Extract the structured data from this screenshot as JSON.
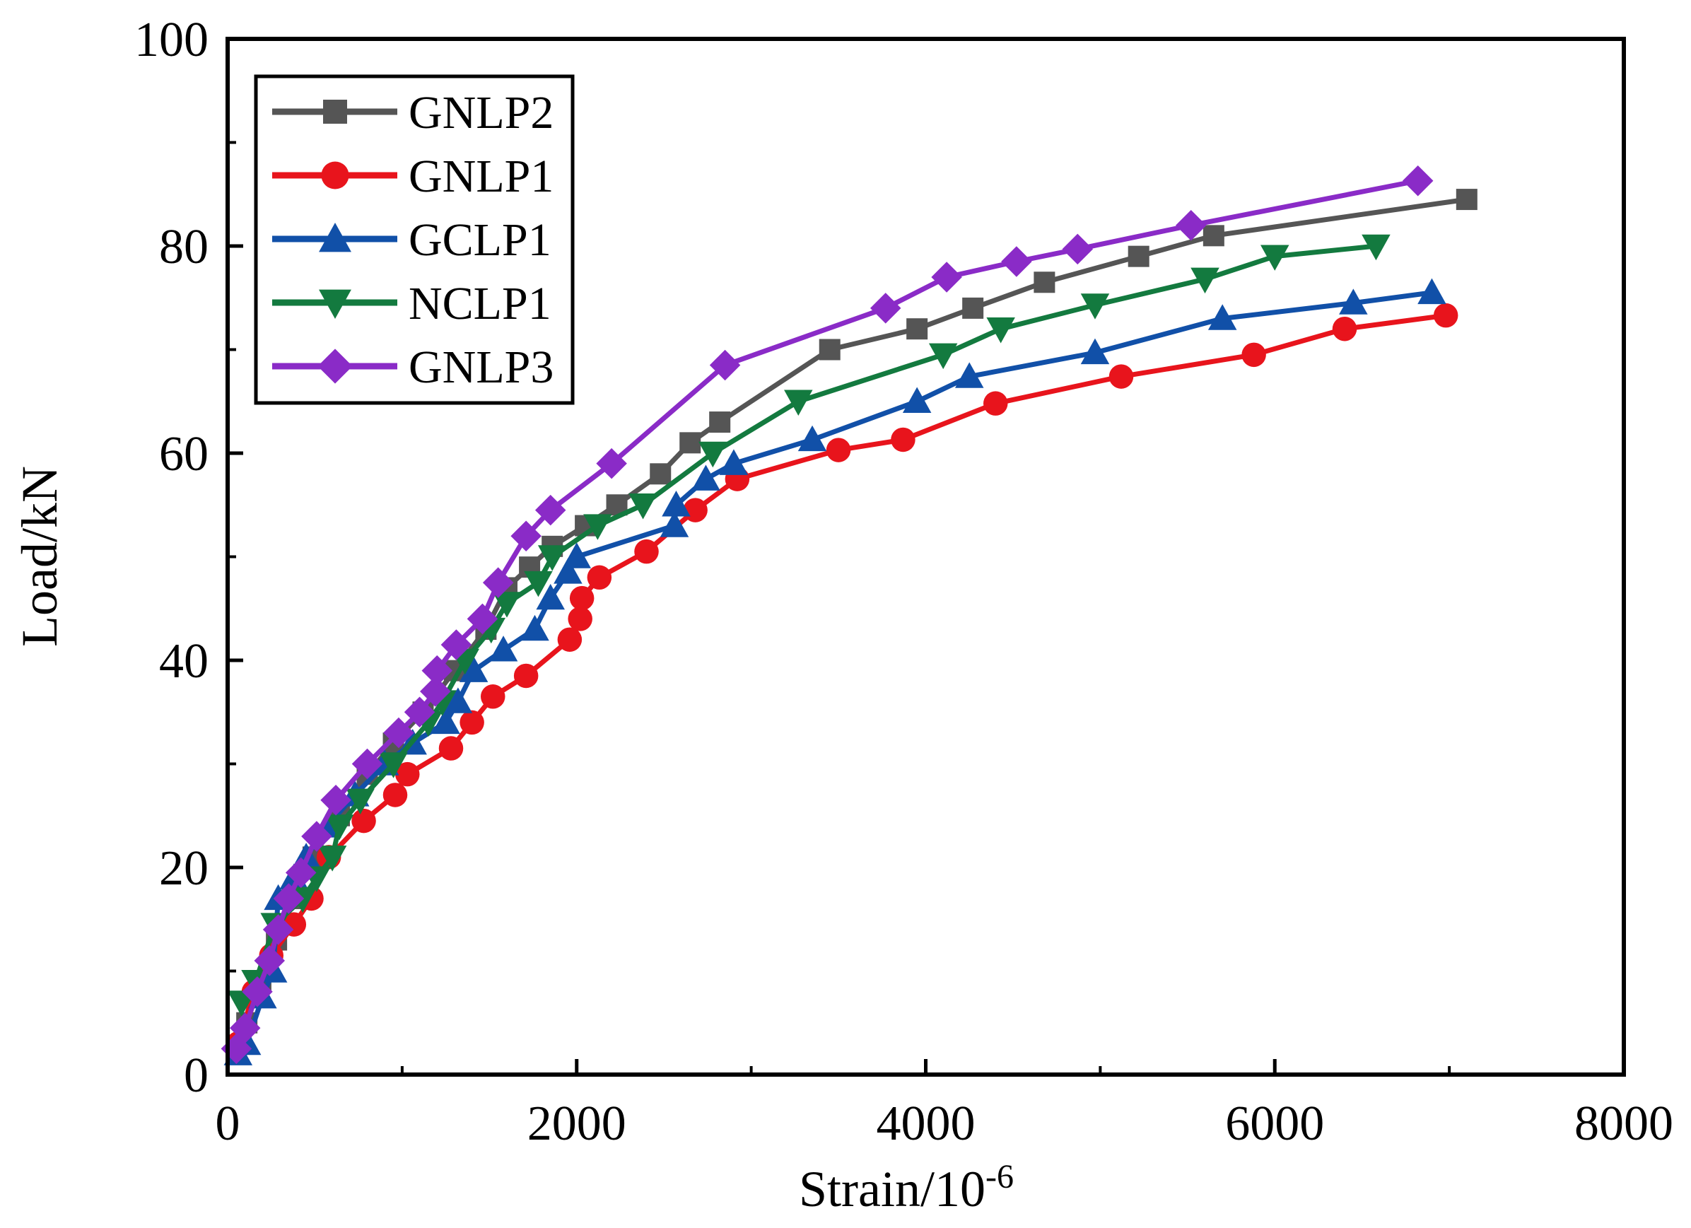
{
  "chart_data": {
    "type": "line",
    "title": "",
    "xlabel": "Strain/10",
    "xlabel_superscript": "-6",
    "ylabel": "Load/kN",
    "xlim": [
      0,
      8000
    ],
    "ylim": [
      0,
      100
    ],
    "x_ticks": [
      "0",
      "2000",
      "4000",
      "6000",
      "8000"
    ],
    "y_ticks": [
      "0",
      "20",
      "40",
      "60",
      "80",
      "100"
    ],
    "grid": false,
    "legend_position": "top-left",
    "series": [
      {
        "name": "GNLP2",
        "color": "#555555",
        "marker": "square",
        "points": [
          [
            50,
            2
          ],
          [
            110,
            5
          ],
          [
            190,
            9
          ],
          [
            280,
            13
          ],
          [
            370,
            17
          ],
          [
            490,
            21
          ],
          [
            640,
            25
          ],
          [
            800,
            29
          ],
          [
            950,
            32
          ],
          [
            1120,
            35
          ],
          [
            1300,
            39
          ],
          [
            1480,
            43
          ],
          [
            1600,
            47
          ],
          [
            1730,
            49
          ],
          [
            1860,
            51
          ],
          [
            2050,
            53
          ],
          [
            2230,
            55
          ],
          [
            2480,
            58
          ],
          [
            2650,
            61
          ],
          [
            2820,
            63
          ],
          [
            3450,
            70
          ],
          [
            3950,
            72
          ],
          [
            4270,
            74
          ],
          [
            4680,
            76.5
          ],
          [
            5220,
            79
          ],
          [
            5650,
            81
          ],
          [
            7100,
            84.5
          ]
        ]
      },
      {
        "name": "GNLP1",
        "color": "#e8141c",
        "marker": "circle",
        "points": [
          [
            60,
            3
          ],
          [
            150,
            8
          ],
          [
            250,
            11.5
          ],
          [
            380,
            14.5
          ],
          [
            480,
            17
          ],
          [
            580,
            21
          ],
          [
            780,
            24.5
          ],
          [
            960,
            27
          ],
          [
            1030,
            29
          ],
          [
            1280,
            31.5
          ],
          [
            1400,
            34
          ],
          [
            1520,
            36.5
          ],
          [
            1710,
            38.5
          ],
          [
            1960,
            42
          ],
          [
            2020,
            44
          ],
          [
            2030,
            46
          ],
          [
            2130,
            48
          ],
          [
            2400,
            50.5
          ],
          [
            2680,
            54.5
          ],
          [
            2920,
            57.5
          ],
          [
            3500,
            60.3
          ],
          [
            3870,
            61.3
          ],
          [
            4400,
            64.8
          ],
          [
            5120,
            67.4
          ],
          [
            5880,
            69.5
          ],
          [
            6400,
            72
          ],
          [
            6980,
            73.3
          ]
        ]
      },
      {
        "name": "GCLP1",
        "color": "#1150a8",
        "marker": "triangle-up",
        "points": [
          [
            60,
            2
          ],
          [
            110,
            3
          ],
          [
            200,
            7.5
          ],
          [
            260,
            10
          ],
          [
            290,
            17
          ],
          [
            380,
            19
          ],
          [
            450,
            21
          ],
          [
            570,
            24
          ],
          [
            730,
            27
          ],
          [
            900,
            30
          ],
          [
            1060,
            32
          ],
          [
            1250,
            34
          ],
          [
            1320,
            36
          ],
          [
            1410,
            39
          ],
          [
            1580,
            41
          ],
          [
            1760,
            43
          ],
          [
            1850,
            46
          ],
          [
            1950,
            48.5
          ],
          [
            2000,
            50
          ],
          [
            2560,
            53
          ],
          [
            2570,
            55
          ],
          [
            2740,
            57.5
          ],
          [
            2900,
            59
          ],
          [
            3350,
            61.3
          ],
          [
            3950,
            65
          ],
          [
            4250,
            67.4
          ],
          [
            4970,
            69.7
          ],
          [
            5700,
            73
          ],
          [
            6450,
            74.5
          ],
          [
            6900,
            75.5
          ]
        ]
      },
      {
        "name": "NCLP1",
        "color": "#137a3f",
        "marker": "triangle-down",
        "points": [
          [
            80,
            7
          ],
          [
            160,
            9
          ],
          [
            270,
            14.5
          ],
          [
            430,
            17
          ],
          [
            510,
            19
          ],
          [
            600,
            21
          ],
          [
            640,
            24
          ],
          [
            760,
            26.5
          ],
          [
            950,
            30
          ],
          [
            1150,
            34
          ],
          [
            1230,
            36
          ],
          [
            1360,
            40
          ],
          [
            1510,
            43
          ],
          [
            1600,
            45.5
          ],
          [
            1780,
            47.5
          ],
          [
            1860,
            50
          ],
          [
            2120,
            53
          ],
          [
            2380,
            55
          ],
          [
            2780,
            60
          ],
          [
            3270,
            65
          ],
          [
            4100,
            69.5
          ],
          [
            4430,
            72
          ],
          [
            4970,
            74.3
          ],
          [
            5600,
            76.8
          ],
          [
            6000,
            79
          ],
          [
            6580,
            80
          ]
        ]
      },
      {
        "name": "GNLP3",
        "color": "#8a2bc7",
        "marker": "diamond",
        "points": [
          [
            50,
            2.5
          ],
          [
            100,
            4.5
          ],
          [
            170,
            8
          ],
          [
            240,
            11
          ],
          [
            290,
            14
          ],
          [
            350,
            17
          ],
          [
            420,
            19.5
          ],
          [
            510,
            23
          ],
          [
            620,
            26.5
          ],
          [
            800,
            30
          ],
          [
            980,
            33
          ],
          [
            1100,
            35
          ],
          [
            1190,
            37
          ],
          [
            1200,
            39
          ],
          [
            1310,
            41.5
          ],
          [
            1460,
            44
          ],
          [
            1550,
            47.5
          ],
          [
            1710,
            52
          ],
          [
            1850,
            54.5
          ],
          [
            2200,
            59
          ],
          [
            2850,
            68.5
          ],
          [
            3770,
            74
          ],
          [
            4120,
            77
          ],
          [
            4520,
            78.5
          ],
          [
            4870,
            79.7
          ],
          [
            5520,
            82
          ],
          [
            6820,
            86.3
          ]
        ]
      }
    ]
  }
}
